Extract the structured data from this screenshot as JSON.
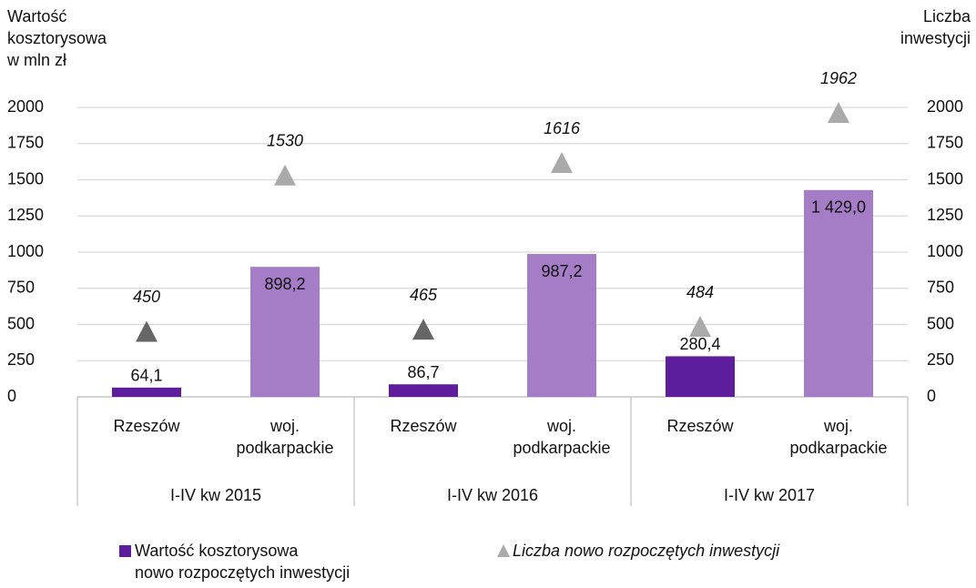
{
  "chart_data": {
    "type": "bar",
    "y_title": "Wartość\nkosztorysowa\nw mln zł",
    "y2_title": "Liczba\ninwestycji",
    "categories": [
      "Rzeszów",
      "woj. podkarpackie",
      "Rzeszów",
      "woj. podkarpackie",
      "Rzeszów",
      "woj. podkarpackie"
    ],
    "groups": [
      "I-IV kw 2015",
      "I-IV kw 2016",
      "I-IV kw 2017"
    ],
    "series": [
      {
        "name": "Wartość kosztorysowa\nnowo rozpoczętych inwestycji",
        "type": "bar",
        "color": "#5c1e9a",
        "colors": [
          "#5c1e9a",
          "#a57dc6",
          "#5c1e9a",
          "#a57dc6",
          "#5c1e9a",
          "#a57dc6"
        ],
        "values": [
          64.1,
          898.2,
          86.7,
          987.2,
          280.4,
          1429.0
        ],
        "value_labels": [
          "64,1",
          "898,2",
          "86,7",
          "987,2",
          "280,4",
          "1 429,0"
        ]
      },
      {
        "name": "Liczba nowo rozpoczętych inwestycji",
        "type": "triangle",
        "axis": "y2",
        "color": "#aaaaaa",
        "colors": [
          "#666666",
          "#aaaaaa",
          "#666666",
          "#aaaaaa",
          "#aaaaaa",
          "#aaaaaa"
        ],
        "values": [
          450,
          1530,
          465,
          1616,
          484,
          1962
        ]
      }
    ],
    "ylim": [
      0,
      2000
    ],
    "yticks": [
      0,
      250,
      500,
      750,
      1000,
      1250,
      1500,
      1750,
      2000
    ],
    "y2lim": [
      0,
      2000
    ],
    "y2ticks": [
      0,
      250,
      500,
      750,
      1000,
      1250,
      1500,
      1750,
      2000
    ],
    "grid": true
  }
}
